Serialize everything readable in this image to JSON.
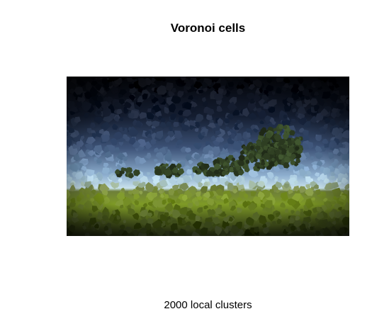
{
  "figure": {
    "title": "Voronoi cells",
    "caption": "2000 local clusters"
  },
  "image": {
    "description_icon": "voronoi-landscape-image",
    "palette": {
      "sky_dark": "#06080f",
      "sky_mid": "#2b3a5a",
      "sky_light": "#8fb0cf",
      "horizon": "#cfe6ee",
      "tree": "#3a4a2a",
      "grass_bright": "#8aa52a",
      "grass_dark": "#1e2410"
    }
  }
}
